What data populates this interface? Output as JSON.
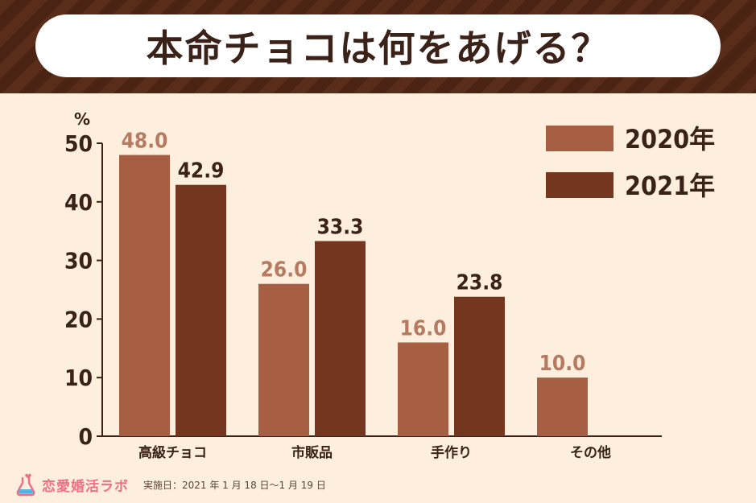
{
  "title": "本命チョコは何をあげる？",
  "chart_data": {
    "type": "bar",
    "unit": "%",
    "categories": [
      "高級チョコ",
      "市販品",
      "手作り",
      "その他"
    ],
    "series": [
      {
        "name": "2020年",
        "values": [
          48.0,
          26.0,
          16.0,
          10.0
        ],
        "labels": [
          "48.0",
          "26.0",
          "16.0",
          "10.0"
        ],
        "color": "#a65f42"
      },
      {
        "name": "2021年",
        "values": [
          42.9,
          33.3,
          23.8,
          null
        ],
        "labels": [
          "42.9",
          "33.3",
          "23.8",
          ""
        ],
        "color": "#74361e"
      }
    ],
    "yticks": [
      "0",
      "10",
      "20",
      "30",
      "40",
      "50"
    ],
    "ylim": [
      0,
      50
    ],
    "grid": false,
    "legend_position": "top-right"
  },
  "footer": {
    "logo": "恋愛婚活ラボ",
    "survey_period": "実施日：2021 年 1 月 18 日〜1 月 19 日"
  },
  "colors": {
    "text": "#3a2218",
    "label_2020": "#b57a5f",
    "label_2021": "#3a2218",
    "logo": "#ef6f87"
  }
}
